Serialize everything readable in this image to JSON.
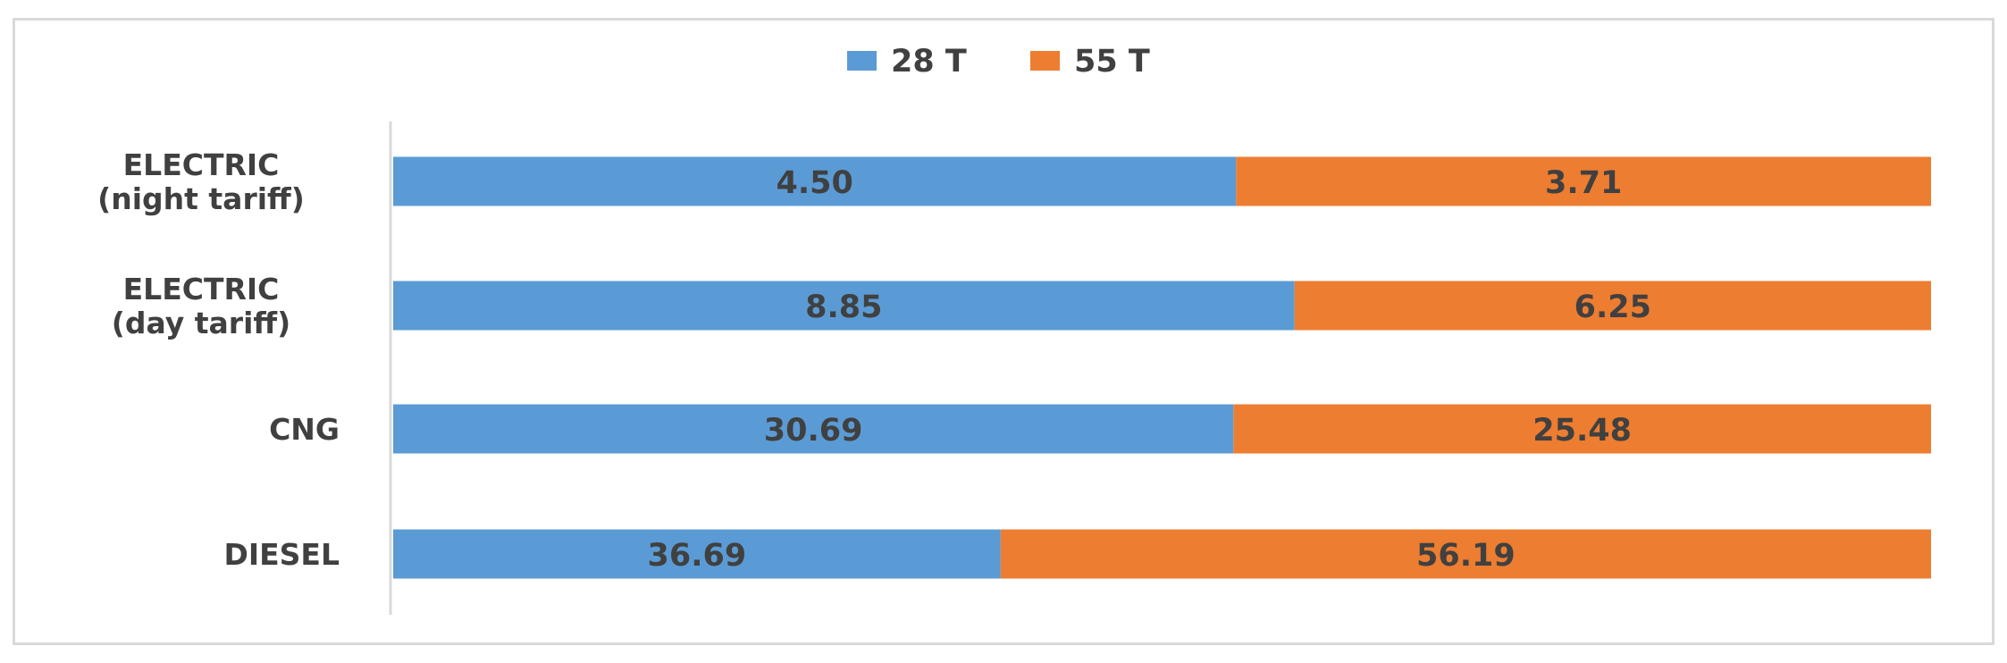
{
  "chart_data": {
    "type": "bar",
    "orientation": "horizontal",
    "stacked": "percent",
    "categories": [
      [
        "ELECTRIC",
        "(night tariff)"
      ],
      [
        "ELECTRIC",
        "(day tariff)"
      ],
      [
        "CNG"
      ],
      [
        "DIESEL"
      ]
    ],
    "series": [
      {
        "name": "28 T",
        "color": "#5b9bd5",
        "values": [
          4.5,
          8.85,
          30.69,
          36.69
        ],
        "labels": [
          "4.50",
          "8.85",
          "30.69",
          "36.69"
        ]
      },
      {
        "name": "55 T",
        "color": "#ed7d31",
        "values": [
          3.71,
          6.25,
          25.48,
          56.19
        ],
        "labels": [
          "3.71",
          "6.25",
          "25.48",
          "56.19"
        ]
      }
    ],
    "title": "",
    "xlabel": "",
    "ylabel": "",
    "legend_position": "top",
    "grid": false
  }
}
